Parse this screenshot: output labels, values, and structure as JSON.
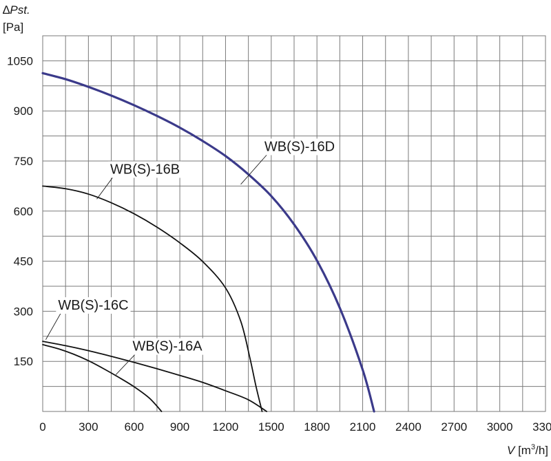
{
  "chart_data": {
    "type": "line",
    "ylabel_symbol": "∆",
    "ylabel_var": "Pst.",
    "ylabel_unit": "[Pa]",
    "xlabel_var": "V",
    "xlabel_unit_pre": " [m",
    "xlabel_unit_sup": "3",
    "xlabel_unit_post": "/h]",
    "xlim": [
      0,
      3300
    ],
    "ylim": [
      0,
      1125
    ],
    "x_grid_step": 150,
    "y_grid_step": 75,
    "grid": true,
    "x_ticks": [
      0,
      300,
      600,
      900,
      1200,
      1500,
      1800,
      2100,
      2400,
      2700,
      3000,
      3300
    ],
    "x_tick_labels": [
      "0",
      "300",
      "600",
      "900",
      "1200",
      "1500",
      "1800",
      "2100",
      "2400",
      "2700",
      "3000",
      "3300"
    ],
    "y_ticks": [
      150,
      300,
      450,
      600,
      750,
      900,
      1050
    ],
    "y_tick_labels": [
      "150",
      "300",
      "450",
      "600",
      "750",
      "900",
      "1050"
    ],
    "colors": {
      "grid": "#7a7a7a",
      "curve_d": "#3b3a8a",
      "curve": "#111111"
    },
    "series": [
      {
        "name": "WB(S)-16D",
        "color": "#3b3a8a",
        "width": 3.2,
        "points": [
          [
            0,
            1013
          ],
          [
            150,
            995
          ],
          [
            300,
            972
          ],
          [
            450,
            946
          ],
          [
            600,
            917
          ],
          [
            750,
            885
          ],
          [
            900,
            850
          ],
          [
            1050,
            810
          ],
          [
            1200,
            765
          ],
          [
            1350,
            710
          ],
          [
            1500,
            645
          ],
          [
            1650,
            560
          ],
          [
            1800,
            452
          ],
          [
            1950,
            310
          ],
          [
            2100,
            125
          ],
          [
            2175,
            0
          ]
        ],
        "label_pos": [
          1455,
          780
        ],
        "leader_to": [
          1300,
          680
        ]
      },
      {
        "name": "WB(S)-16B",
        "color": "#111111",
        "width": 1.8,
        "points": [
          [
            0,
            675
          ],
          [
            150,
            667
          ],
          [
            300,
            651
          ],
          [
            450,
            625
          ],
          [
            600,
            592
          ],
          [
            750,
            552
          ],
          [
            900,
            505
          ],
          [
            1050,
            449
          ],
          [
            1200,
            370
          ],
          [
            1300,
            270
          ],
          [
            1360,
            160
          ],
          [
            1400,
            75
          ],
          [
            1440,
            0
          ]
        ],
        "label_pos": [
          443,
          712
        ],
        "leader_to": [
          355,
          636
        ]
      },
      {
        "name": "WB(S)-16C",
        "color": "#111111",
        "width": 1.8,
        "points": [
          [
            0,
            210
          ],
          [
            150,
            197
          ],
          [
            300,
            182
          ],
          [
            450,
            165
          ],
          [
            600,
            147
          ],
          [
            750,
            128
          ],
          [
            900,
            108
          ],
          [
            1050,
            87
          ],
          [
            1200,
            62
          ],
          [
            1350,
            35
          ],
          [
            1470,
            0
          ]
        ],
        "label_pos": [
          101,
          305
        ],
        "leader_to": [
          20,
          215
        ]
      },
      {
        "name": "WB(S)-16A",
        "color": "#111111",
        "width": 1.8,
        "points": [
          [
            0,
            200
          ],
          [
            100,
            188
          ],
          [
            200,
            172
          ],
          [
            300,
            152
          ],
          [
            400,
            128
          ],
          [
            500,
            102
          ],
          [
            600,
            74
          ],
          [
            700,
            40
          ],
          [
            780,
            0
          ]
        ],
        "label_pos": [
          590,
          182
        ],
        "leader_to": [
          480,
          110
        ]
      }
    ]
  }
}
